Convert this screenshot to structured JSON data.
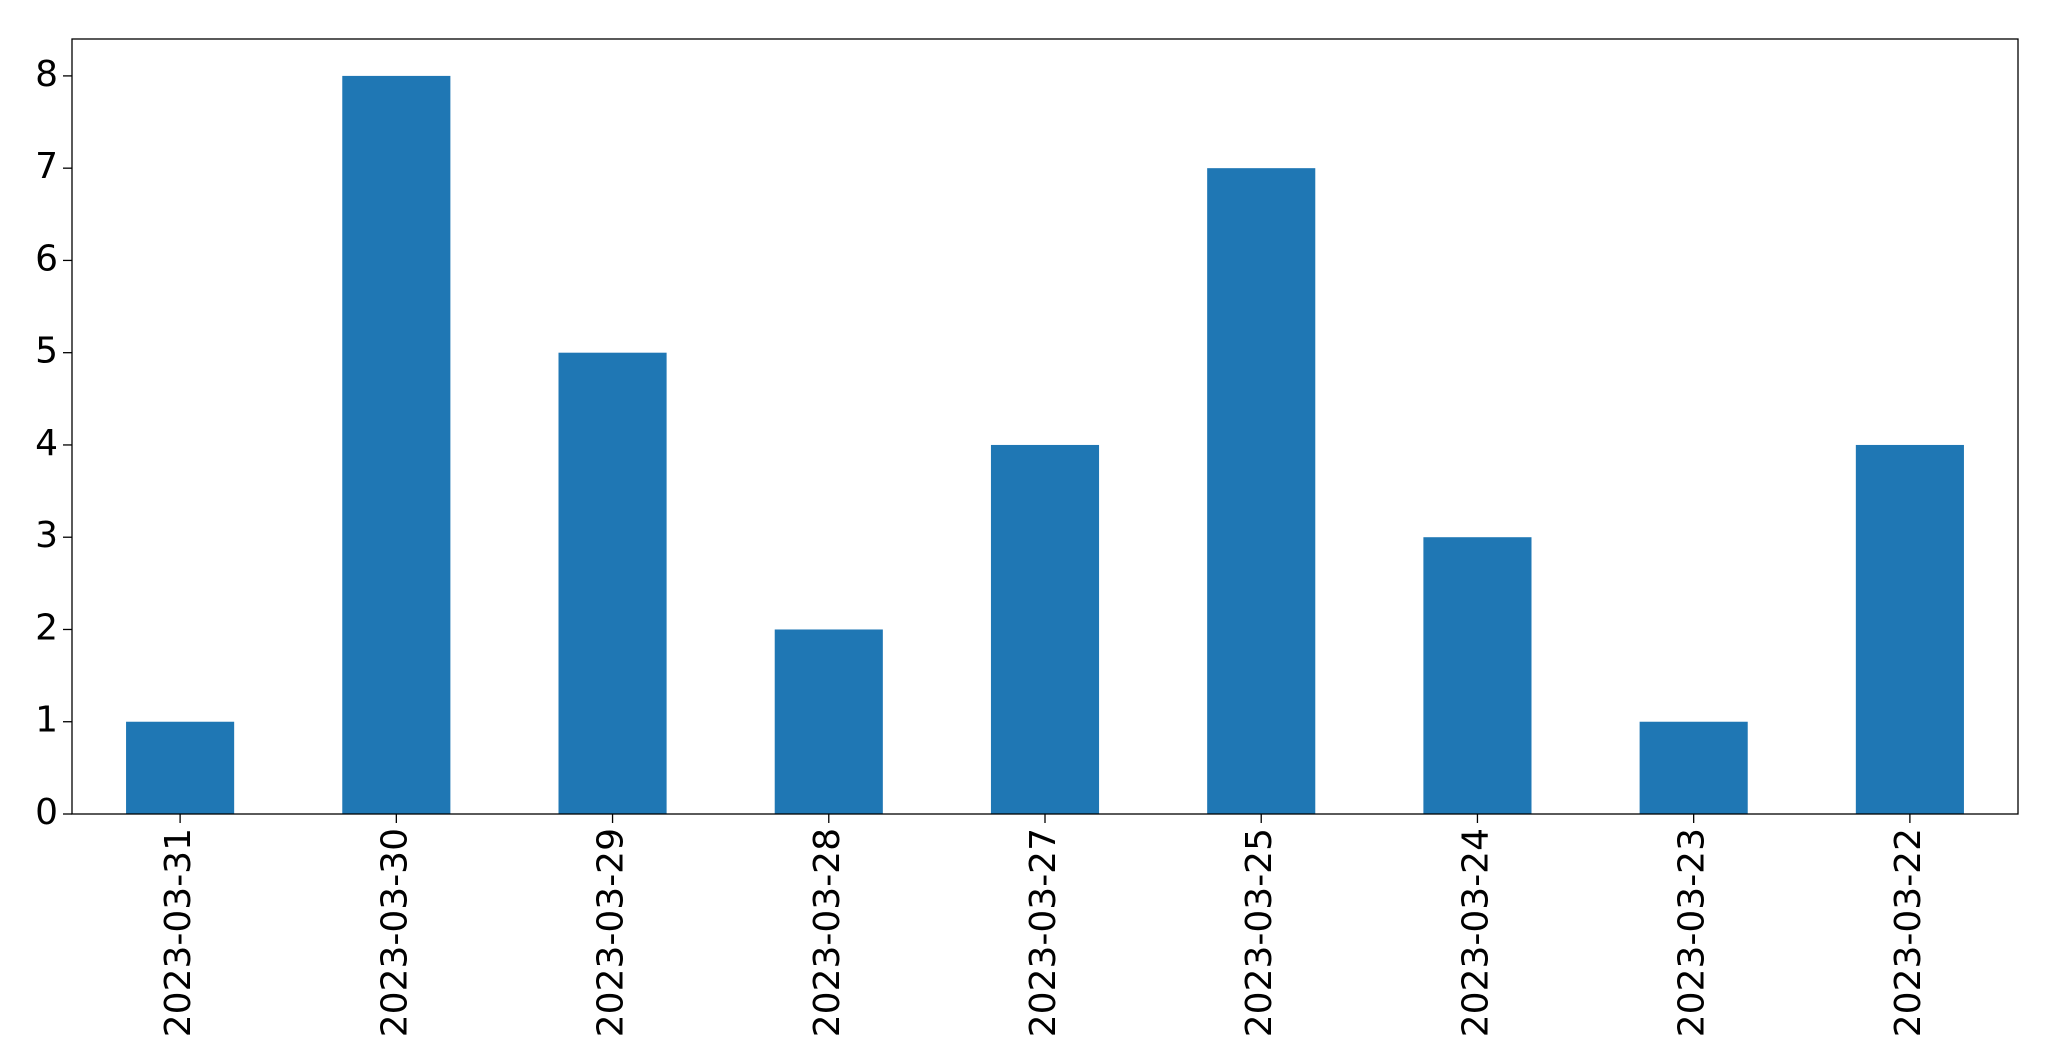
{
  "chart_data": {
    "type": "bar",
    "categories": [
      "2023-03-31",
      "2023-03-30",
      "2023-03-29",
      "2023-03-28",
      "2023-03-27",
      "2023-03-25",
      "2023-03-24",
      "2023-03-23",
      "2023-03-22"
    ],
    "values": [
      1,
      8,
      5,
      2,
      4,
      7,
      3,
      1,
      4
    ],
    "color": "#1f77b4",
    "ylim": [
      0,
      8.4
    ],
    "yticks": [
      0,
      1,
      2,
      3,
      4,
      5,
      6,
      7,
      8
    ],
    "grid": false
  }
}
